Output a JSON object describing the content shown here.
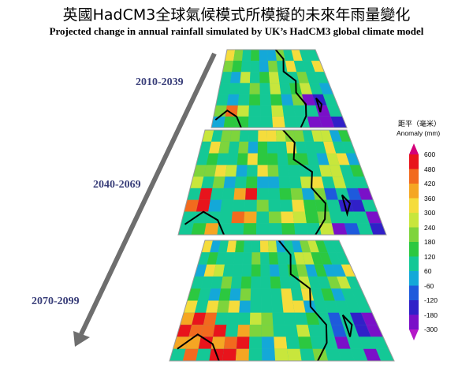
{
  "title_zh": "英國HadCM3全球氣候模式所模擬的未來年雨量變化",
  "title_en": "Projected change in annual rainfall simulated by UK’s HadCM3 global climate model",
  "periods": [
    "2010-2039",
    "2040-2069",
    "2070-2099"
  ],
  "legend": {
    "title_zh": "距平（毫米）",
    "title_en": "Anomaly (mm)",
    "ticks": [
      "600",
      "480",
      "420",
      "360",
      "300",
      "240",
      "180",
      "120",
      "60",
      "-60",
      "-120",
      "-180",
      "-300"
    ],
    "colors": [
      "#d4007a",
      "#e8141c",
      "#f26a1e",
      "#f5a623",
      "#f5dc3c",
      "#c8e63c",
      "#7ed43c",
      "#2cc840",
      "#14c896",
      "#14a8d8",
      "#1e5adc",
      "#3020c8",
      "#7a10c8",
      "#b418c8"
    ]
  }
}
